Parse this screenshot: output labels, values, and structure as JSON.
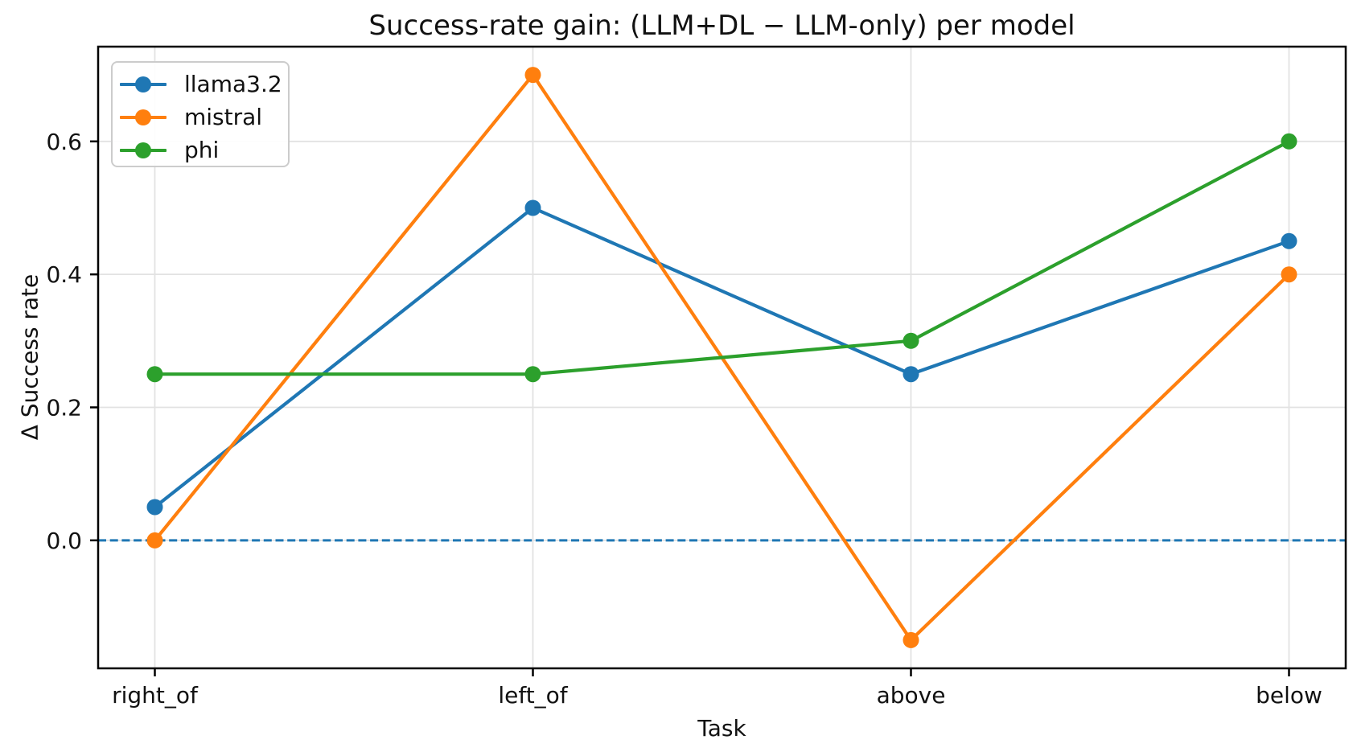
{
  "chart_data": {
    "type": "line",
    "title": "Success-rate gain: (LLM+DL − LLM-only) per model",
    "xlabel": "Task",
    "ylabel": "Δ Success rate",
    "categories": [
      "right_of",
      "left_of",
      "above",
      "below"
    ],
    "series": [
      {
        "name": "llama3.2",
        "color": "#1f77b4",
        "values": [
          0.05,
          0.5,
          0.25,
          0.45
        ]
      },
      {
        "name": "mistral",
        "color": "#ff7f0e",
        "values": [
          0.0,
          0.7,
          -0.15,
          0.4
        ]
      },
      {
        "name": "phi",
        "color": "#2ca02c",
        "values": [
          0.25,
          0.25,
          0.3,
          0.6
        ]
      }
    ],
    "yticks": [
      0.0,
      0.2,
      0.4,
      0.6
    ],
    "ytick_labels": [
      "0.0",
      "0.2",
      "0.4",
      "0.6"
    ],
    "ylim": [
      -0.1925,
      0.7425
    ],
    "xlim": [
      -0.15,
      3.15
    ],
    "grid": true,
    "zero_line": {
      "y": 0.0,
      "style": "dashed",
      "color": "#1f77b4"
    },
    "legend": {
      "position": "upper left"
    },
    "colors": {
      "grid": "#e2e2e2",
      "spine": "#000000",
      "text": "#111111"
    }
  }
}
